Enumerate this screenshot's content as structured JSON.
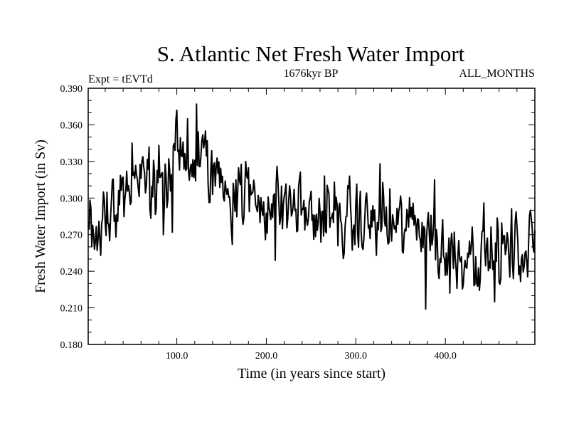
{
  "chart_data": {
    "type": "line",
    "title": "S. Atlantic Net Fresh Water Import",
    "subtitle_left": "Expt = tEVTd",
    "subtitle_center": "1676kyr BP",
    "subtitle_right": "ALL_MONTHS",
    "xlabel": "Time (in years since start)",
    "ylabel": "Fresh Water Import (in Sv)",
    "xlim": [
      1,
      500
    ],
    "ylim": [
      0.18,
      0.39
    ],
    "xticks": [
      100,
      200,
      300,
      400
    ],
    "xtick_labels": [
      "100.0",
      "200.0",
      "300.0",
      "400.0"
    ],
    "yticks": [
      0.18,
      0.21,
      0.24,
      0.27,
      0.3,
      0.33,
      0.36,
      0.39
    ],
    "ytick_labels": [
      "0.180",
      "0.210",
      "0.240",
      "0.270",
      "0.300",
      "0.330",
      "0.360",
      "0.390"
    ],
    "grid": false,
    "series": [
      {
        "name": "Fresh Water Import",
        "description": "annual values, years 1-500 (approximate trace)",
        "trend_anchors": {
          "x": [
            1,
            10,
            25,
            40,
            55,
            70,
            85,
            100,
            115,
            125,
            140,
            155,
            170,
            190,
            210,
            230,
            250,
            270,
            290,
            310,
            330,
            350,
            370,
            380,
            390,
            410,
            430,
            450,
            470,
            490,
            500
          ],
          "y": [
            0.285,
            0.275,
            0.295,
            0.305,
            0.315,
            0.31,
            0.31,
            0.335,
            0.33,
            0.33,
            0.32,
            0.315,
            0.305,
            0.3,
            0.295,
            0.295,
            0.285,
            0.285,
            0.28,
            0.28,
            0.28,
            0.275,
            0.28,
            0.28,
            0.258,
            0.255,
            0.258,
            0.255,
            0.255,
            0.258,
            0.26
          ]
        },
        "extremes": {
          "x": [
            8,
            15,
            25,
            50,
            85,
            95,
            100,
            112,
            122,
            132,
            162,
            210,
            265,
            327,
            378,
            388,
            405,
            455,
            495
          ],
          "y": [
            0.258,
            0.253,
            0.265,
            0.345,
            0.27,
            0.272,
            0.372,
            0.365,
            0.377,
            0.355,
            0.262,
            0.249,
            0.318,
            0.328,
            0.209,
            0.315,
            0.222,
            0.215,
            0.29
          ]
        }
      }
    ]
  }
}
